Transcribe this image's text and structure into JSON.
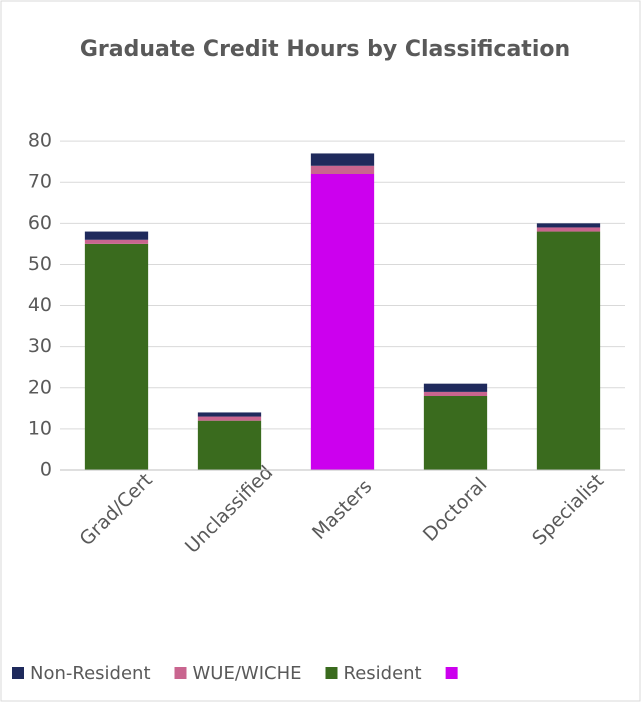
{
  "chart_data": {
    "type": "stacked_bar",
    "title": "Graduate Credit Hours by Classification",
    "categories": [
      "Grad/Cert",
      "Unclassified",
      "Masters",
      "Doctoral",
      "Specialist"
    ],
    "series": [
      {
        "name": "Non-Resident",
        "color": "#1f2a5c",
        "values": [
          2,
          1,
          3,
          2,
          1
        ]
      },
      {
        "name": "WUE/WICHE",
        "color": "#c9658f",
        "values": [
          1,
          1,
          2,
          1,
          1
        ]
      },
      {
        "name": "Resident",
        "color": "#3a6b1e",
        "values": [
          55,
          12,
          0,
          18,
          58
        ]
      },
      {
        "name": null,
        "color": "#cc00ee",
        "values": [
          0,
          0,
          72,
          0,
          0
        ]
      }
    ],
    "ylim": [
      0,
      90
    ],
    "yticks": [
      0,
      10,
      20,
      30,
      40,
      50,
      60,
      70,
      80
    ],
    "grid": true
  }
}
